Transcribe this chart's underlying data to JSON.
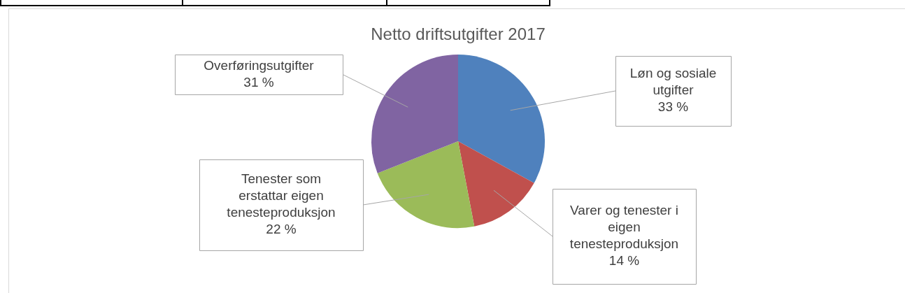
{
  "chart_data": {
    "type": "pie",
    "title": "Netto driftsutgifter 2017",
    "categories": [
      "Løn og sosiale utgifter",
      "Varer og tenester i eigen tenesteproduksjon",
      "Tenester som erstattar eigen tenesteproduksjon",
      "Overføringsutgifter"
    ],
    "values": [
      33,
      14,
      22,
      31
    ],
    "value_labels": [
      "33 %",
      "14 %",
      "22 %",
      "31 %"
    ],
    "colors": [
      "#4f81bd",
      "#c0504d",
      "#9bbb59",
      "#8064a2"
    ],
    "legend": false
  }
}
